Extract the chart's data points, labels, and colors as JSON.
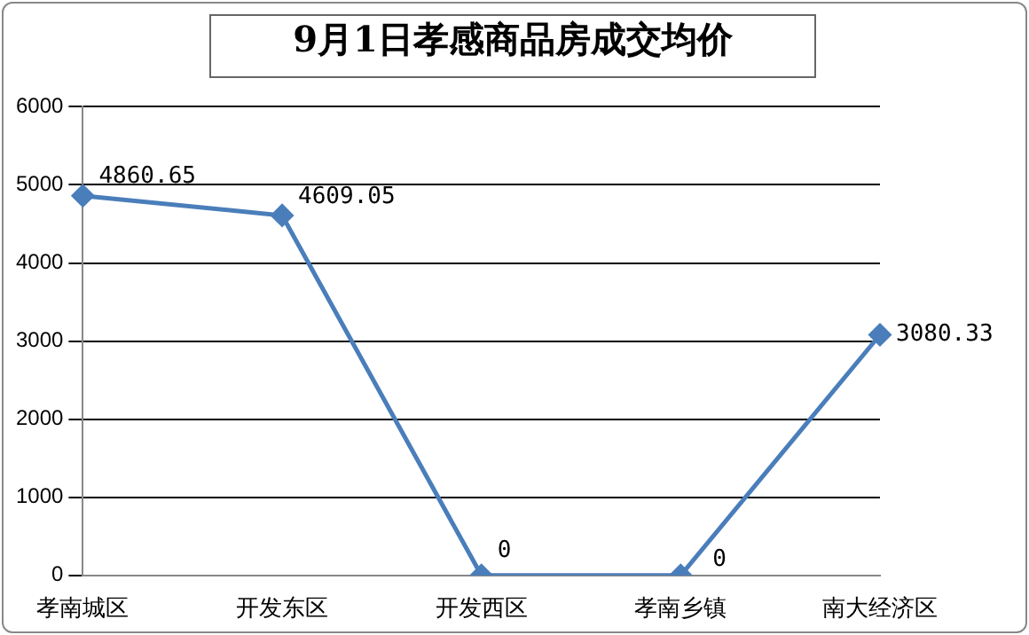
{
  "chart_data": {
    "type": "line",
    "title": "9月1日孝感商品房成交均价",
    "categories": [
      "孝南城区",
      "开发东区",
      "开发西区",
      "孝南乡镇",
      "南大经济区"
    ],
    "series": [
      {
        "color": "#4a7ebb",
        "values": [
          4860.65,
          4609.05,
          0,
          0,
          3080.33
        ]
      }
    ],
    "ylim": [
      0,
      6000
    ],
    "yticks": [
      0,
      1000,
      2000,
      3000,
      4000,
      5000,
      6000
    ],
    "grid": "y",
    "legend": false,
    "marker": "diamond",
    "line_style": "solid",
    "data_labels": true
  }
}
